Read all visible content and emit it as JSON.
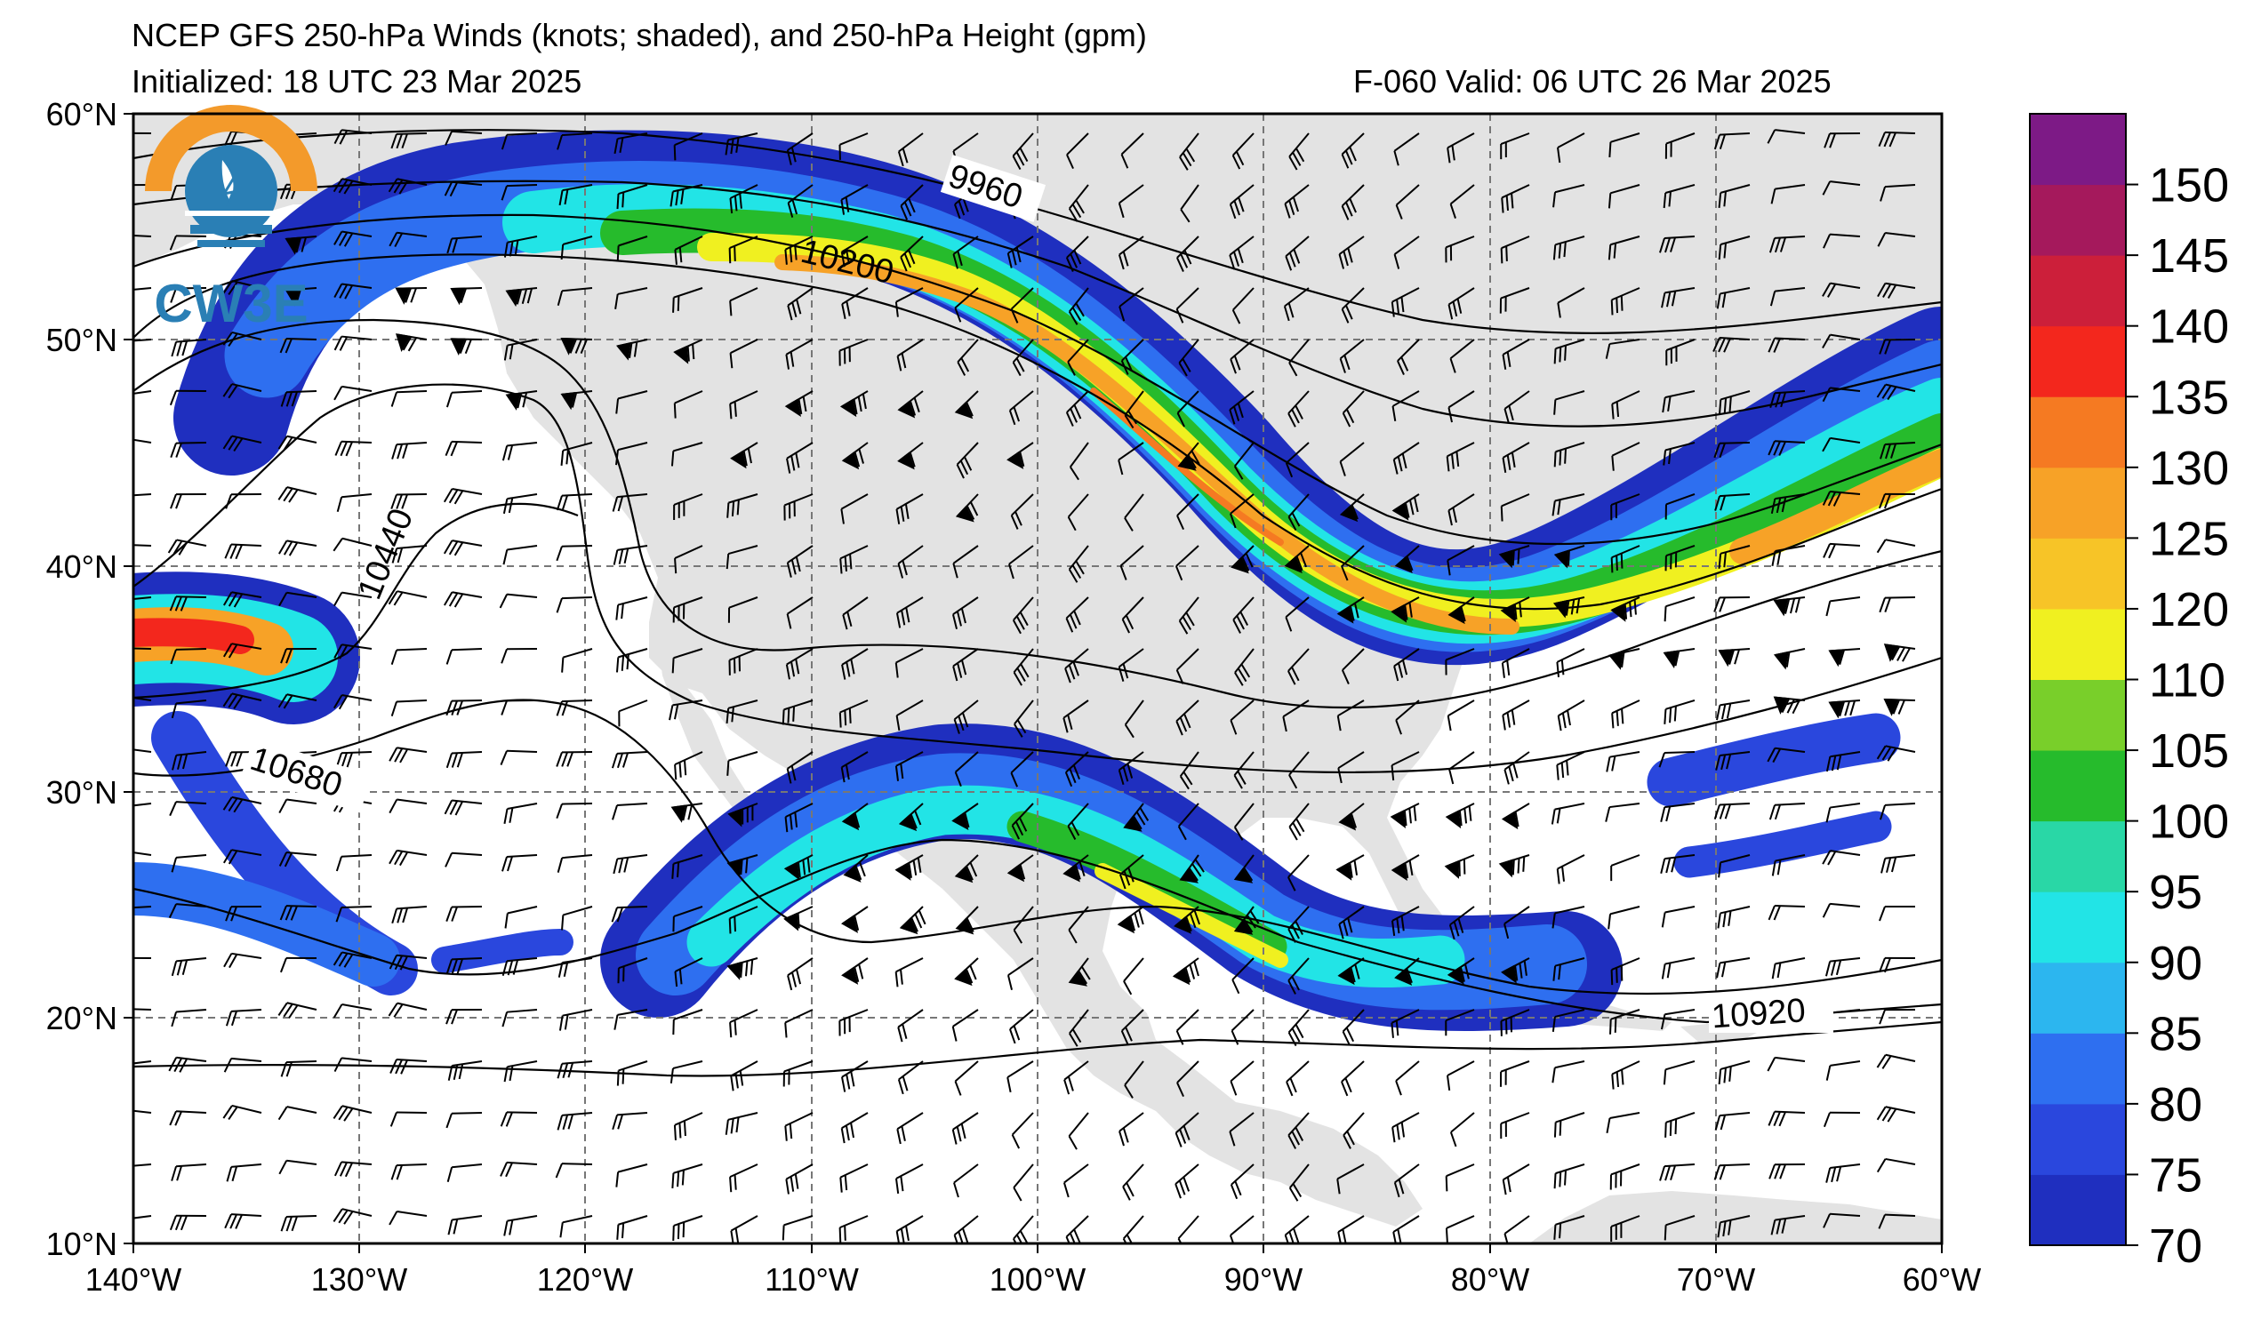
{
  "header": {
    "title": "NCEP GFS 250-hPa Winds (knots; shaded), and 250-hPa Height (gpm)",
    "initialized": "Initialized: 18 UTC 23 Mar 2025",
    "valid": "F-060  Valid: 06 UTC 26 Mar 2025"
  },
  "logo": {
    "text": "CW3E",
    "colors": {
      "orange": "#f39a2b",
      "blue": "#2a7fb5"
    }
  },
  "map": {
    "longitude_labels": [
      "140°W",
      "130°W",
      "120°W",
      "110°W",
      "100°W",
      "90°W",
      "80°W",
      "70°W",
      "60°W"
    ],
    "latitude_labels": [
      "60°N",
      "50°N",
      "40°N",
      "30°N",
      "20°N",
      "10°N"
    ],
    "contour_labels": [
      "9960",
      "10200",
      "10440",
      "10680",
      "10920"
    ],
    "land_color": "#e3e3e3",
    "ocean_color": "#ffffff"
  },
  "colorbar": {
    "levels": [
      "70",
      "75",
      "80",
      "85",
      "90",
      "95",
      "100",
      "105",
      "110",
      "120",
      "125",
      "130",
      "135",
      "140",
      "145",
      "150"
    ],
    "colors": [
      "#1f2fbf",
      "#2a47dd",
      "#2e6ff0",
      "#2cb6ef",
      "#22e4e6",
      "#29d7a6",
      "#26bb2c",
      "#79cf2a",
      "#f0f020",
      "#f7c427",
      "#f7a227",
      "#f57a22",
      "#f3271d",
      "#cc1f3a",
      "#a5195c",
      "#7d1a86"
    ],
    "top_color": "#7d1a86"
  }
}
